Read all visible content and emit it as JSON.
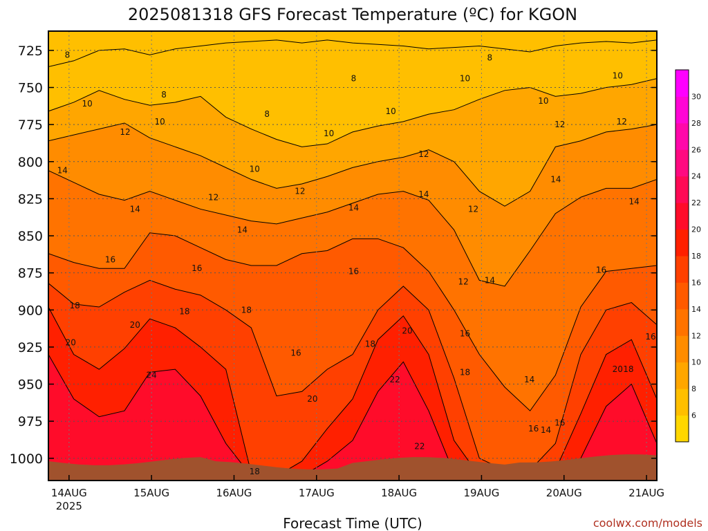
{
  "title": "2025081318 GFS Forecast Temperature (ºC) for KGON",
  "chart_data": {
    "type": "heatmap",
    "title": "2025081318 GFS Forecast Temperature (ºC) for KGON",
    "xlabel": "Forecast Time (UTC)",
    "ylabel": "",
    "credit": "coolwx.com/models",
    "y_axis": {
      "ticks": [
        725,
        750,
        775,
        800,
        825,
        850,
        875,
        900,
        925,
        950,
        975,
        1000
      ],
      "range": [
        712,
        1015
      ]
    },
    "x_axis": {
      "range_days": [
        13.75,
        21.125
      ],
      "ticks": [
        {
          "label": "14AUG",
          "sublabel": "2025",
          "day": 14
        },
        {
          "label": "15AUG",
          "sublabel": "",
          "day": 15
        },
        {
          "label": "16AUG",
          "sublabel": "",
          "day": 16
        },
        {
          "label": "17AUG",
          "sublabel": "",
          "day": 17
        },
        {
          "label": "18AUG",
          "sublabel": "",
          "day": 18
        },
        {
          "label": "19AUG",
          "sublabel": "",
          "day": 19
        },
        {
          "label": "20AUG",
          "sublabel": "",
          "day": 20
        },
        {
          "label": "21AUG",
          "sublabel": "",
          "day": 21
        }
      ]
    },
    "grid": true,
    "colorbar": {
      "ticks": [
        6,
        8,
        10,
        12,
        14,
        16,
        18,
        20,
        22,
        24,
        26,
        28,
        30
      ],
      "levels": [
        5,
        7,
        9,
        11,
        13,
        15,
        17,
        19,
        21,
        23,
        25,
        27,
        29,
        31
      ],
      "colors": [
        "#ffd700",
        "#ffbf00",
        "#ffa600",
        "#ff8c00",
        "#ff7300",
        "#ff5a00",
        "#ff4000",
        "#ff2000",
        "#ff0c2a",
        "#ff0a55",
        "#ff0a80",
        "#ff08aa",
        "#ff06d5",
        "#ff00ff"
      ]
    },
    "isotherms": [
      {
        "value": 8,
        "p": [
          736,
          732,
          725,
          724,
          728,
          724,
          722,
          720,
          719,
          718,
          720,
          718,
          720,
          721,
          722,
          724,
          723,
          722,
          724,
          726,
          722,
          720,
          719,
          720,
          718
        ]
      },
      {
        "value": 10,
        "p": [
          766,
          760,
          752,
          758,
          762,
          760,
          756,
          770,
          778,
          785,
          790,
          788,
          780,
          776,
          773,
          768,
          765,
          758,
          752,
          750,
          756,
          754,
          750,
          748,
          744
        ]
      },
      {
        "value": 12,
        "p": [
          786,
          782,
          778,
          774,
          784,
          790,
          796,
          804,
          812,
          818,
          815,
          810,
          804,
          800,
          797,
          792,
          800,
          820,
          830,
          820,
          790,
          786,
          780,
          778,
          775
        ]
      },
      {
        "value": 14,
        "p": [
          806,
          814,
          822,
          826,
          820,
          826,
          832,
          836,
          840,
          842,
          838,
          834,
          828,
          822,
          820,
          826,
          846,
          880,
          884,
          860,
          835,
          824,
          818,
          818,
          812
        ]
      },
      {
        "value": 16,
        "p": [
          862,
          868,
          872,
          872,
          848,
          850,
          858,
          866,
          870,
          870,
          862,
          860,
          852,
          852,
          858,
          874,
          900,
          930,
          952,
          968,
          944,
          898,
          874,
          872,
          870
        ]
      },
      {
        "value": 18,
        "p": [
          882,
          896,
          898,
          888,
          880,
          886,
          890,
          900,
          912,
          958,
          955,
          940,
          930,
          900,
          884,
          900,
          946,
          1000,
          1008,
          1008,
          990,
          930,
          900,
          895,
          910
        ]
      },
      {
        "value": 20,
        "p": [
          898,
          930,
          940,
          926,
          906,
          912,
          925,
          940,
          1010,
          1012,
          1002,
          980,
          960,
          920,
          904,
          930,
          988,
          1012,
          1012,
          1012,
          1008,
          970,
          930,
          920,
          960
        ]
      },
      {
        "value": 22,
        "p": [
          930,
          960,
          972,
          968,
          942,
          940,
          958,
          990,
          1012,
          1012,
          1012,
          1002,
          988,
          955,
          935,
          968,
          1010,
          1012,
          1012,
          1012,
          1012,
          1000,
          965,
          950,
          990
        ]
      }
    ],
    "contour_labels": [
      {
        "text": "8",
        "day": 13.98,
        "p": 728
      },
      {
        "text": "8",
        "day": 15.15,
        "p": 755
      },
      {
        "text": "8",
        "day": 16.4,
        "p": 768
      },
      {
        "text": "8",
        "day": 17.45,
        "p": 744
      },
      {
        "text": "8",
        "day": 19.1,
        "p": 730
      },
      {
        "text": "10",
        "day": 14.22,
        "p": 761
      },
      {
        "text": "10",
        "day": 15.1,
        "p": 773
      },
      {
        "text": "10",
        "day": 16.25,
        "p": 805
      },
      {
        "text": "10",
        "day": 17.15,
        "p": 781
      },
      {
        "text": "10",
        "day": 17.9,
        "p": 766
      },
      {
        "text": "10",
        "day": 18.8,
        "p": 744
      },
      {
        "text": "10",
        "day": 19.75,
        "p": 759
      },
      {
        "text": "10",
        "day": 20.65,
        "p": 742
      },
      {
        "text": "12",
        "day": 14.68,
        "p": 780
      },
      {
        "text": "12",
        "day": 15.75,
        "p": 824
      },
      {
        "text": "12",
        "day": 16.8,
        "p": 820
      },
      {
        "text": "12",
        "day": 18.3,
        "p": 795
      },
      {
        "text": "12",
        "day": 18.9,
        "p": 832
      },
      {
        "text": "12",
        "day": 19.95,
        "p": 775
      },
      {
        "text": "12",
        "day": 20.7,
        "p": 773
      },
      {
        "text": "12",
        "day": 18.78,
        "p": 881
      },
      {
        "text": "14",
        "day": 13.92,
        "p": 806
      },
      {
        "text": "14",
        "day": 14.8,
        "p": 832
      },
      {
        "text": "14",
        "day": 16.1,
        "p": 846
      },
      {
        "text": "14",
        "day": 17.45,
        "p": 831
      },
      {
        "text": "14",
        "day": 18.3,
        "p": 822
      },
      {
        "text": "14",
        "day": 19.1,
        "p": 880
      },
      {
        "text": "14",
        "day": 19.9,
        "p": 812
      },
      {
        "text": "14",
        "day": 20.85,
        "p": 827
      },
      {
        "text": "14",
        "day": 19.58,
        "p": 947
      },
      {
        "text": "14",
        "day": 19.78,
        "p": 981
      },
      {
        "text": "16",
        "day": 14.5,
        "p": 866
      },
      {
        "text": "16",
        "day": 15.55,
        "p": 872
      },
      {
        "text": "16",
        "day": 17.45,
        "p": 874
      },
      {
        "text": "16",
        "day": 16.75,
        "p": 929
      },
      {
        "text": "16",
        "day": 18.8,
        "p": 916
      },
      {
        "text": "16",
        "day": 20.45,
        "p": 873
      },
      {
        "text": "16",
        "day": 21.05,
        "p": 918
      },
      {
        "text": "16",
        "day": 19.63,
        "p": 980
      },
      {
        "text": "16",
        "day": 19.95,
        "p": 976
      },
      {
        "text": "18",
        "day": 14.07,
        "p": 897
      },
      {
        "text": "18",
        "day": 15.4,
        "p": 901
      },
      {
        "text": "18",
        "day": 16.15,
        "p": 900
      },
      {
        "text": "18",
        "day": 17.65,
        "p": 923
      },
      {
        "text": "18",
        "day": 18.8,
        "p": 942
      },
      {
        "text": "18",
        "day": 20.78,
        "p": 940
      },
      {
        "text": "18",
        "day": 16.25,
        "p": 1009
      },
      {
        "text": "20",
        "day": 14.02,
        "p": 922
      },
      {
        "text": "20",
        "day": 14.8,
        "p": 910
      },
      {
        "text": "20",
        "day": 16.95,
        "p": 960
      },
      {
        "text": "20",
        "day": 18.1,
        "p": 914
      },
      {
        "text": "20",
        "day": 20.65,
        "p": 940
      },
      {
        "text": "22",
        "day": 17.95,
        "p": 947
      },
      {
        "text": "22",
        "day": 18.25,
        "p": 992
      },
      {
        "text": "24",
        "day": 15.0,
        "p": 944
      }
    ]
  }
}
